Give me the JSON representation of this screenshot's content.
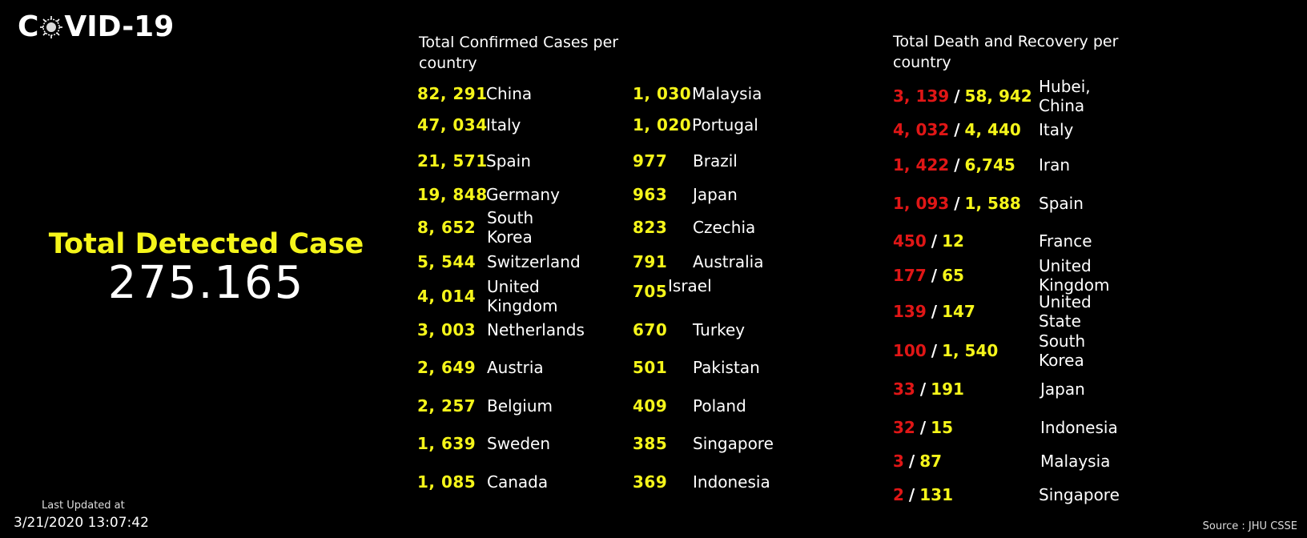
{
  "logo": {
    "pre": "C",
    "post": "VID-19"
  },
  "hero": {
    "title": "Total Detected Case",
    "value": "275.165"
  },
  "updated": {
    "label": "Last Updated at",
    "value": "3/21/2020 13:07:42"
  },
  "source": "Source : JHU CSSE",
  "confirmed": {
    "title": "Total Confirmed Cases per country",
    "left_column": [
      {
        "value": "82, 291",
        "country": "China"
      },
      {
        "value": "47, 034",
        "country": "Italy"
      },
      {
        "value": "21, 571",
        "country": "Spain"
      },
      {
        "value": "19, 848",
        "country": "Germany"
      },
      {
        "value": "8, 652",
        "country": "South Korea"
      },
      {
        "value": "5, 544",
        "country": "Switzerland"
      },
      {
        "value": "4, 014",
        "country": "United Kingdom"
      },
      {
        "value": "3, 003",
        "country": "Netherlands"
      },
      {
        "value": "2, 649",
        "country": "Austria"
      },
      {
        "value": "2, 257",
        "country": "Belgium"
      },
      {
        "value": "1, 639",
        "country": "Sweden"
      },
      {
        "value": "1, 085",
        "country": "Canada"
      }
    ],
    "right_column": [
      {
        "value": "1, 030",
        "country": "Malaysia"
      },
      {
        "value": "1, 020",
        "country": "Portugal"
      },
      {
        "value": "977",
        "country": "Brazil"
      },
      {
        "value": "963",
        "country": "Japan"
      },
      {
        "value": "823",
        "country": "Czechia"
      },
      {
        "value": "791",
        "country": "Australia"
      },
      {
        "value": "705",
        "country": "Israel"
      },
      {
        "value": "670",
        "country": "Turkey"
      },
      {
        "value": "501",
        "country": "Pakistan"
      },
      {
        "value": "409",
        "country": "Poland"
      },
      {
        "value": "385",
        "country": "Singapore"
      },
      {
        "value": "369",
        "country": "Indonesia"
      }
    ]
  },
  "death_recovery": {
    "title": "Total Death and Recovery per country",
    "rows": [
      {
        "deaths": "3, 139",
        "recovered": "58, 942",
        "country": "Hubei, China"
      },
      {
        "deaths": "4, 032",
        "recovered": "4, 440",
        "country": "Italy"
      },
      {
        "deaths": "1, 422",
        "recovered": "6,745",
        "country": "Iran"
      },
      {
        "deaths": "1, 093",
        "recovered": "1, 588",
        "country": "Spain"
      },
      {
        "deaths": "450",
        "recovered": "12",
        "country": "France"
      },
      {
        "deaths": "177",
        "recovered": "65",
        "country": "United Kingdom"
      },
      {
        "deaths": "139",
        "recovered": "147",
        "country": "United State"
      },
      {
        "deaths": "100",
        "recovered": "1, 540",
        "country": "South Korea"
      },
      {
        "deaths": "33",
        "recovered": "191",
        "country": "Japan"
      },
      {
        "deaths": "32",
        "recovered": "15",
        "country": "Indonesia"
      },
      {
        "deaths": "3",
        "recovered": "87",
        "country": "Malaysia"
      },
      {
        "deaths": "2",
        "recovered": "131",
        "country": "Singapore"
      }
    ]
  },
  "colors": {
    "background": "#000000",
    "accent_yellow": "#f5f51a",
    "death_red": "#e01616",
    "text": "#ffffff"
  },
  "icons": {
    "logo_o": "coronavirus-icon"
  }
}
